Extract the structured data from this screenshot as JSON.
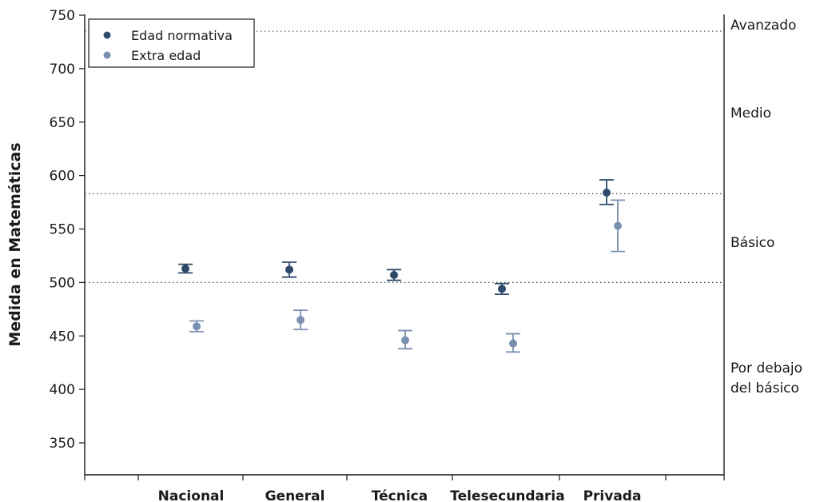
{
  "chart_data": {
    "type": "scatter",
    "ylabel": "Medida en Matemáticas",
    "xlabel": "",
    "ylim": [
      320,
      750
    ],
    "yticks": [
      350,
      400,
      450,
      500,
      550,
      600,
      650,
      700,
      750
    ],
    "categories": [
      "Nacional",
      "General",
      "Técnica",
      "Telesecundaria",
      "Privada"
    ],
    "series": [
      {
        "name": "Edad normativa",
        "color": "#2e4a6b",
        "values": [
          513,
          512,
          507,
          494,
          584
        ],
        "lower": [
          509,
          505,
          502,
          489,
          573
        ],
        "upper": [
          517,
          519,
          512,
          499,
          596
        ]
      },
      {
        "name": "Extra edad",
        "color": "#7a90b0",
        "values": [
          459,
          465,
          446,
          443,
          553
        ],
        "lower": [
          454,
          456,
          438,
          435,
          529
        ],
        "upper": [
          464,
          474,
          455,
          452,
          577
        ]
      }
    ],
    "reference_lines": [
      {
        "value": 500,
        "style": "dotted"
      },
      {
        "value": 583,
        "style": "dotted"
      },
      {
        "value": 735,
        "style": "dotted"
      }
    ],
    "levels": [
      {
        "label": "Avanzado",
        "lines": [
          "Avanzado"
        ]
      },
      {
        "label": "Medio",
        "lines": [
          "Medio"
        ]
      },
      {
        "label": "Básico",
        "lines": [
          "Básico"
        ]
      },
      {
        "label": "Por debajo del básico",
        "lines": [
          "Por debajo",
          "del básico"
        ]
      }
    ],
    "legend": {
      "placement": "top-left"
    },
    "grid": false
  }
}
